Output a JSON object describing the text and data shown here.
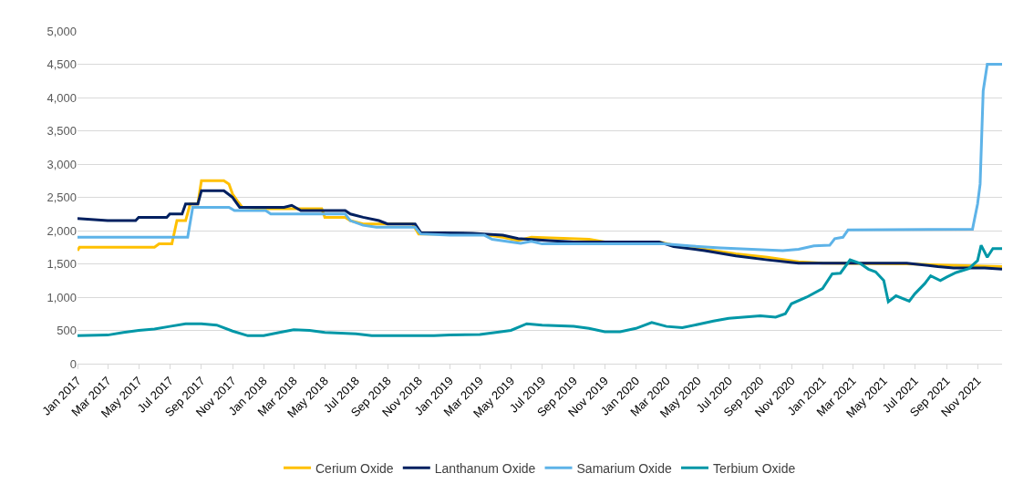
{
  "chart_data": {
    "type": "line",
    "xlim": [
      "2017-01-01",
      "2021-12-19"
    ],
    "xticks": [
      {
        "value": "2017-01-01",
        "label": "Jan 2017"
      },
      {
        "value": "2017-03-01",
        "label": "Mar 2017"
      },
      {
        "value": "2017-05-01",
        "label": "May 2017"
      },
      {
        "value": "2017-07-01",
        "label": "Jul 2017"
      },
      {
        "value": "2017-09-01",
        "label": "Sep 2017"
      },
      {
        "value": "2017-11-01",
        "label": "Nov 2017"
      },
      {
        "value": "2018-01-01",
        "label": "Jan 2018"
      },
      {
        "value": "2018-03-01",
        "label": "Mar 2018"
      },
      {
        "value": "2018-05-01",
        "label": "May 2018"
      },
      {
        "value": "2018-07-01",
        "label": "Jul 2018"
      },
      {
        "value": "2018-09-01",
        "label": "Sep 2018"
      },
      {
        "value": "2018-11-01",
        "label": "Nov 2018"
      },
      {
        "value": "2019-01-01",
        "label": "Jan 2019"
      },
      {
        "value": "2019-03-01",
        "label": "Mar 2019"
      },
      {
        "value": "2019-05-01",
        "label": "May 2019"
      },
      {
        "value": "2019-07-01",
        "label": "Jul 2019"
      },
      {
        "value": "2019-09-01",
        "label": "Sep 2019"
      },
      {
        "value": "2019-11-01",
        "label": "Nov 2019"
      },
      {
        "value": "2020-01-01",
        "label": "Jan 2020"
      },
      {
        "value": "2020-03-01",
        "label": "Mar 2020"
      },
      {
        "value": "2020-05-01",
        "label": "May 2020"
      },
      {
        "value": "2020-07-01",
        "label": "Jul 2020"
      },
      {
        "value": "2020-09-01",
        "label": "Sep 2020"
      },
      {
        "value": "2020-11-01",
        "label": "Nov 2020"
      },
      {
        "value": "2021-01-01",
        "label": "Jan 2021"
      },
      {
        "value": "2021-03-01",
        "label": "Mar 2021"
      },
      {
        "value": "2021-05-01",
        "label": "May 2021"
      },
      {
        "value": "2021-07-01",
        "label": "Jul 2021"
      },
      {
        "value": "2021-09-01",
        "label": "Sep 2021"
      },
      {
        "value": "2021-11-01",
        "label": "Nov 2021"
      }
    ],
    "ylim": [
      0,
      5000
    ],
    "yticks": [
      {
        "value": 0,
        "label": "0"
      },
      {
        "value": 500,
        "label": "500"
      },
      {
        "value": 1000,
        "label": "1,000"
      },
      {
        "value": 1500,
        "label": "1,500"
      },
      {
        "value": 2000,
        "label": "2,000"
      },
      {
        "value": 2500,
        "label": "2,500"
      },
      {
        "value": 3000,
        "label": "3,000"
      },
      {
        "value": 3500,
        "label": "3,500"
      },
      {
        "value": 4000,
        "label": "4,000"
      },
      {
        "value": 4500,
        "label": "4,500"
      },
      {
        "value": 5000,
        "label": "5,000"
      }
    ],
    "grid": "y",
    "legend": "bottom",
    "marker": "none",
    "line_style": "solid",
    "series": [
      {
        "name": "Cerium Oxide",
        "color": "#ffc000",
        "x": [
          "2017-01-01",
          "2017-01-05",
          "2017-06-01",
          "2017-06-10",
          "2017-07-05",
          "2017-07-15",
          "2017-08-01",
          "2017-08-10",
          "2017-08-25",
          "2017-09-01",
          "2017-10-15",
          "2017-10-25",
          "2017-11-01",
          "2017-11-10",
          "2017-11-20",
          "2018-01-01",
          "2018-04-25",
          "2018-05-01",
          "2018-06-10",
          "2018-06-20",
          "2018-07-15",
          "2018-10-20",
          "2018-11-01",
          "2019-03-01",
          "2019-04-15",
          "2019-05-15",
          "2019-06-10",
          "2019-10-01",
          "2019-11-01",
          "2020-02-15",
          "2020-03-15",
          "2020-05-15",
          "2020-07-15",
          "2020-09-15",
          "2020-11-15",
          "2021-01-01",
          "2021-06-15",
          "2021-09-01",
          "2021-12-19"
        ],
        "values": [
          1700,
          1750,
          1750,
          1800,
          1800,
          2150,
          2150,
          2400,
          2400,
          2750,
          2750,
          2700,
          2550,
          2450,
          2350,
          2330,
          2330,
          2200,
          2200,
          2150,
          2100,
          2100,
          1950,
          1950,
          1900,
          1850,
          1900,
          1870,
          1830,
          1830,
          1780,
          1720,
          1650,
          1600,
          1530,
          1510,
          1500,
          1480,
          1460
        ]
      },
      {
        "name": "Lanthanum Oxide",
        "color": "#002060",
        "x": [
          "2017-01-01",
          "2017-03-01",
          "2017-04-25",
          "2017-05-01",
          "2017-06-25",
          "2017-07-01",
          "2017-07-25",
          "2017-08-01",
          "2017-08-25",
          "2017-09-01",
          "2017-10-15",
          "2017-11-01",
          "2017-11-15",
          "2018-02-10",
          "2018-02-25",
          "2018-03-15",
          "2018-06-10",
          "2018-06-20",
          "2018-07-15",
          "2018-08-15",
          "2018-09-01",
          "2018-10-25",
          "2018-11-05",
          "2019-02-15",
          "2019-04-15",
          "2019-05-15",
          "2019-07-15",
          "2019-09-01",
          "2020-02-15",
          "2020-03-15",
          "2020-05-15",
          "2020-07-15",
          "2020-09-15",
          "2020-11-15",
          "2021-06-15",
          "2021-08-15",
          "2021-09-15",
          "2021-11-15",
          "2021-12-19"
        ],
        "values": [
          2180,
          2150,
          2150,
          2200,
          2200,
          2250,
          2250,
          2400,
          2400,
          2600,
          2600,
          2500,
          2350,
          2350,
          2380,
          2300,
          2300,
          2250,
          2200,
          2150,
          2100,
          2100,
          1970,
          1960,
          1930,
          1880,
          1850,
          1830,
          1830,
          1760,
          1700,
          1620,
          1560,
          1510,
          1510,
          1460,
          1440,
          1440,
          1420
        ]
      },
      {
        "name": "Samarium Oxide",
        "color": "#5eb3e8",
        "x": [
          "2017-01-01",
          "2017-08-05",
          "2017-08-15",
          "2017-10-25",
          "2017-11-05",
          "2018-01-05",
          "2018-01-15",
          "2018-06-10",
          "2018-06-20",
          "2018-07-15",
          "2018-08-10",
          "2018-10-25",
          "2018-11-05",
          "2019-01-01",
          "2019-03-10",
          "2019-03-25",
          "2019-05-01",
          "2019-05-20",
          "2019-06-10",
          "2019-07-01",
          "2020-02-25",
          "2020-04-15",
          "2020-06-15",
          "2020-08-15",
          "2020-10-15",
          "2020-11-15",
          "2020-12-15",
          "2021-01-15",
          "2021-01-25",
          "2021-02-10",
          "2021-02-20",
          "2021-10-22",
          "2021-11-01",
          "2021-11-06",
          "2021-11-12",
          "2021-11-20",
          "2021-12-19"
        ],
        "values": [
          1900,
          1900,
          2350,
          2350,
          2300,
          2300,
          2250,
          2250,
          2150,
          2080,
          2050,
          2050,
          1950,
          1930,
          1930,
          1870,
          1830,
          1810,
          1840,
          1800,
          1800,
          1770,
          1740,
          1720,
          1700,
          1720,
          1770,
          1780,
          1880,
          1900,
          2010,
          2020,
          2400,
          2700,
          4100,
          4500,
          4500
        ]
      },
      {
        "name": "Terbium Oxide",
        "color": "#0097a7",
        "x": [
          "2017-01-01",
          "2017-03-01",
          "2017-04-01",
          "2017-05-01",
          "2017-06-01",
          "2017-07-01",
          "2017-08-01",
          "2017-09-01",
          "2017-10-01",
          "2017-11-01",
          "2017-12-01",
          "2018-01-01",
          "2018-02-01",
          "2018-03-01",
          "2018-04-01",
          "2018-05-01",
          "2018-06-01",
          "2018-07-01",
          "2018-08-01",
          "2018-10-01",
          "2018-12-01",
          "2019-01-01",
          "2019-03-01",
          "2019-04-01",
          "2019-05-01",
          "2019-06-01",
          "2019-07-01",
          "2019-09-01",
          "2019-10-01",
          "2019-11-01",
          "2019-12-01",
          "2020-01-01",
          "2020-02-01",
          "2020-03-01",
          "2020-04-01",
          "2020-05-01",
          "2020-06-01",
          "2020-07-01",
          "2020-09-01",
          "2020-10-01",
          "2020-10-20",
          "2020-11-01",
          "2020-12-01",
          "2021-01-01",
          "2021-01-20",
          "2021-02-05",
          "2021-02-24",
          "2021-03-15",
          "2021-04-01",
          "2021-04-15",
          "2021-05-01",
          "2021-05-10",
          "2021-05-25",
          "2021-06-20",
          "2021-07-01",
          "2021-07-20",
          "2021-08-01",
          "2021-08-20",
          "2021-09-01",
          "2021-09-20",
          "2021-10-15",
          "2021-11-01",
          "2021-11-08",
          "2021-11-20",
          "2021-12-01",
          "2021-12-19"
        ],
        "values": [
          420,
          430,
          470,
          500,
          520,
          560,
          600,
          600,
          580,
          490,
          420,
          420,
          470,
          510,
          500,
          470,
          460,
          450,
          420,
          420,
          420,
          430,
          440,
          470,
          500,
          600,
          580,
          560,
          530,
          480,
          480,
          530,
          620,
          560,
          540,
          590,
          640,
          680,
          720,
          700,
          750,
          900,
          1000,
          1130,
          1350,
          1360,
          1560,
          1510,
          1420,
          1380,
          1250,
          930,
          1020,
          940,
          1050,
          1200,
          1320,
          1250,
          1300,
          1370,
          1430,
          1550,
          1780,
          1600,
          1730,
          1730
        ]
      }
    ]
  }
}
